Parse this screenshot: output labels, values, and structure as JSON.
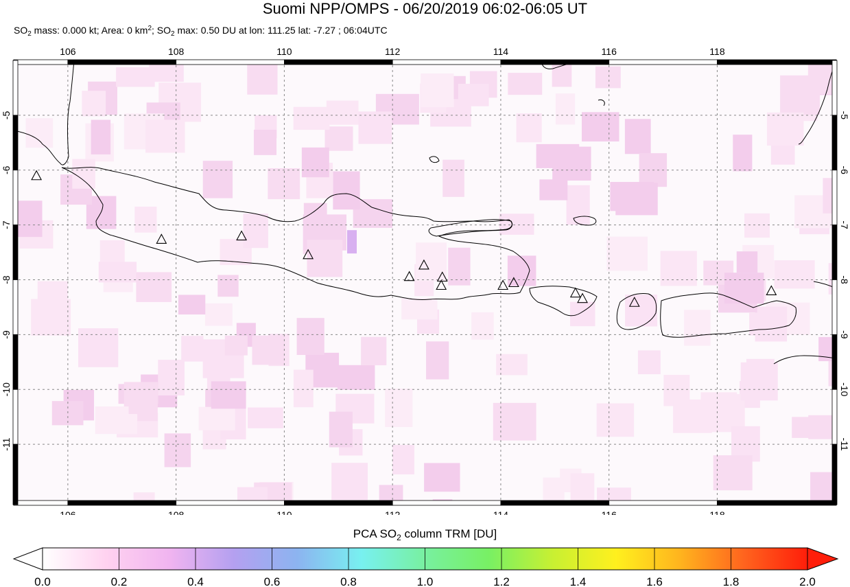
{
  "title": "Suomi NPP/OMPS - 06/20/2019 06:02-06:05 UT",
  "subtitle": {
    "mass_prefix": "SO",
    "mass_sub": "2",
    "mass_text": " mass: 0.000 kt; Area: 0 km",
    "area_sup": "2",
    "sep": "; ",
    "max_prefix": "SO",
    "max_sub": "2",
    "max_text": " max: 0.50 DU at lon: 111.25 lat: -7.27 ; 06:04UTC"
  },
  "map": {
    "lon_range": [
      105.0,
      120.2
    ],
    "lat_range": [
      -12.1,
      -4.0
    ],
    "lon_ticks": [
      "106",
      "108",
      "110",
      "112",
      "114",
      "116",
      "118"
    ],
    "lon_tick_values": [
      106,
      108,
      110,
      112,
      114,
      116,
      118
    ],
    "lat_ticks": [
      "-5",
      "-6",
      "-7",
      "-8",
      "-9",
      "-10",
      "-11"
    ],
    "lat_tick_values": [
      -5,
      -6,
      -7,
      -8,
      -9,
      -10,
      -11
    ],
    "volcanoes": [
      {
        "lon": 105.42,
        "lat": -6.1
      },
      {
        "lon": 107.73,
        "lat": -7.26
      },
      {
        "lon": 109.21,
        "lat": -7.2
      },
      {
        "lon": 110.44,
        "lat": -7.54
      },
      {
        "lon": 112.31,
        "lat": -7.94
      },
      {
        "lon": 112.58,
        "lat": -7.73
      },
      {
        "lon": 112.92,
        "lat": -7.95
      },
      {
        "lon": 112.9,
        "lat": -8.1
      },
      {
        "lon": 114.04,
        "lat": -8.1
      },
      {
        "lon": 114.24,
        "lat": -8.05
      },
      {
        "lon": 115.38,
        "lat": -8.24
      },
      {
        "lon": 115.51,
        "lat": -8.34
      },
      {
        "lon": 116.47,
        "lat": -8.41
      },
      {
        "lon": 119.0,
        "lat": -8.2
      }
    ],
    "so2_max": {
      "value": 0.5,
      "lon": 111.25,
      "lat": -7.27
    }
  },
  "colorbar": {
    "label_prefix": "PCA SO",
    "label_sub": "2",
    "label_suffix": " column TRM [DU]",
    "min": 0.0,
    "max": 2.0,
    "ticks": [
      "0.0",
      "0.2",
      "0.4",
      "0.6",
      "0.8",
      "1.0",
      "1.2",
      "1.4",
      "1.6",
      "1.8",
      "2.0"
    ],
    "tick_values": [
      0.0,
      0.2,
      0.4,
      0.6,
      0.8,
      1.0,
      1.2,
      1.4,
      1.6,
      1.8,
      2.0
    ],
    "colors": [
      "#ffffff",
      "#ffd2f0",
      "#f0b4f0",
      "#b4a0f0",
      "#8cb4f0",
      "#78f0f0",
      "#78f0a0",
      "#78f064",
      "#c8f032",
      "#fff01e",
      "#ffb41e",
      "#ff641e",
      "#ff1e0a"
    ]
  }
}
